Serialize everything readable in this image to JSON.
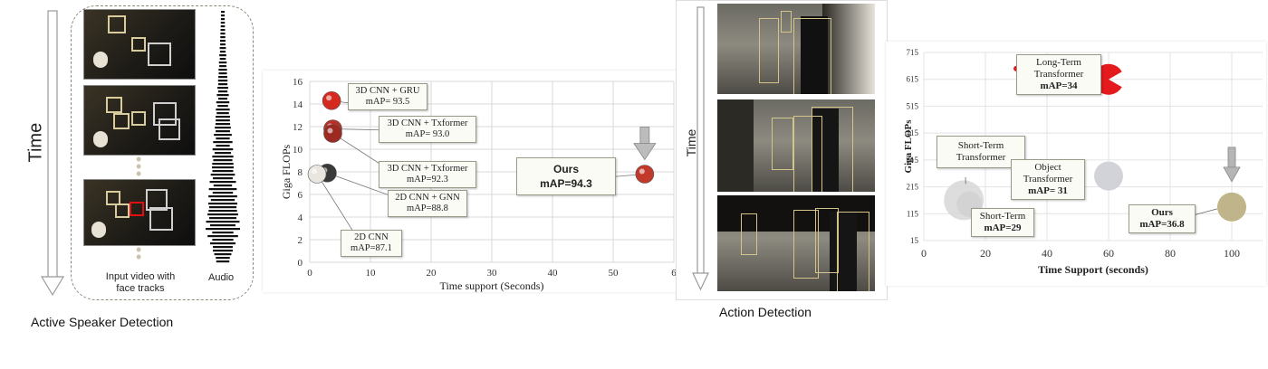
{
  "left_panel": {
    "time_label": "Time",
    "input_label": "Input video with face tracks",
    "audio_label": "Audio",
    "caption": "Active Speaker Detection"
  },
  "middle_panel": {
    "time_label": "Time",
    "caption": "Action Detection"
  },
  "chart_data": [
    {
      "type": "scatter",
      "title": "",
      "xlabel": "Time support (Seconds)",
      "ylabel": "Giga FLOPs",
      "xlim": [
        0,
        60
      ],
      "ylim": [
        0,
        16
      ],
      "xticks": [
        "0",
        "10",
        "20",
        "30",
        "40",
        "50",
        "6"
      ],
      "yticks": [
        "0",
        "2",
        "4",
        "6",
        "8",
        "10",
        "12",
        "14",
        "16"
      ],
      "grid": true,
      "series": [
        {
          "label": "3D CNN + GRU",
          "map": "mAP= 93.5",
          "x": 3.6,
          "y": 14.3,
          "color": "#d42a1f"
        },
        {
          "label": "3D CNN + Txformer",
          "map": "mAP= 93.0",
          "x": 3.8,
          "y": 11.8,
          "color": "#b8302a"
        },
        {
          "label": "3D CNN + Txformer",
          "map": "mAP=92.3",
          "x": 3.8,
          "y": 11.4,
          "color": "#9c2a22"
        },
        {
          "label": "2D CNN + GNN",
          "map": "mAP=88.8",
          "x": 2.9,
          "y": 7.9,
          "color": "#3a3a3a"
        },
        {
          "label": "2D CNN",
          "map": "mAP=87.1",
          "x": 1.2,
          "y": 7.8,
          "color": "#e8e6df"
        },
        {
          "label": "Ours",
          "map": "mAP=94.3",
          "x": 55.2,
          "y": 7.8,
          "color": "#c0392b"
        }
      ]
    },
    {
      "type": "scatter",
      "title": "",
      "xlabel": "Time Support (seconds)",
      "ylabel": "Giga FLOPs",
      "xlim": [
        0,
        110
      ],
      "ylim": [
        15,
        715
      ],
      "xticks": [
        "0",
        "20",
        "40",
        "60",
        "80",
        "100"
      ],
      "yticks": [
        "15",
        "115",
        "215",
        "315",
        "415",
        "515",
        "615",
        "715"
      ],
      "grid": true,
      "series": [
        {
          "label": "Long-Term Transformer",
          "map": "mAP=34",
          "x": 30,
          "y": 655,
          "color": "#e41a1c"
        },
        {
          "label": "Long-Term Transformer",
          "map": "mAP=34",
          "x": 60,
          "y": 615,
          "color": "#e41a1c"
        },
        {
          "label": "Short-Term Transformer",
          "map": "",
          "x": 13,
          "y": 165,
          "color": "#d7d7d7"
        },
        {
          "label": "Short-Term",
          "map": "mAP=29",
          "x": 13,
          "y": 150,
          "color": "#cfcfcf"
        },
        {
          "label": "Object Transformer",
          "map": "mAP= 31",
          "x": 60,
          "y": 255,
          "color": "#d2d3d8"
        },
        {
          "label": "Ours",
          "map": "mAP=36.8",
          "x": 100,
          "y": 140,
          "color": "#bfb48a"
        }
      ]
    }
  ]
}
